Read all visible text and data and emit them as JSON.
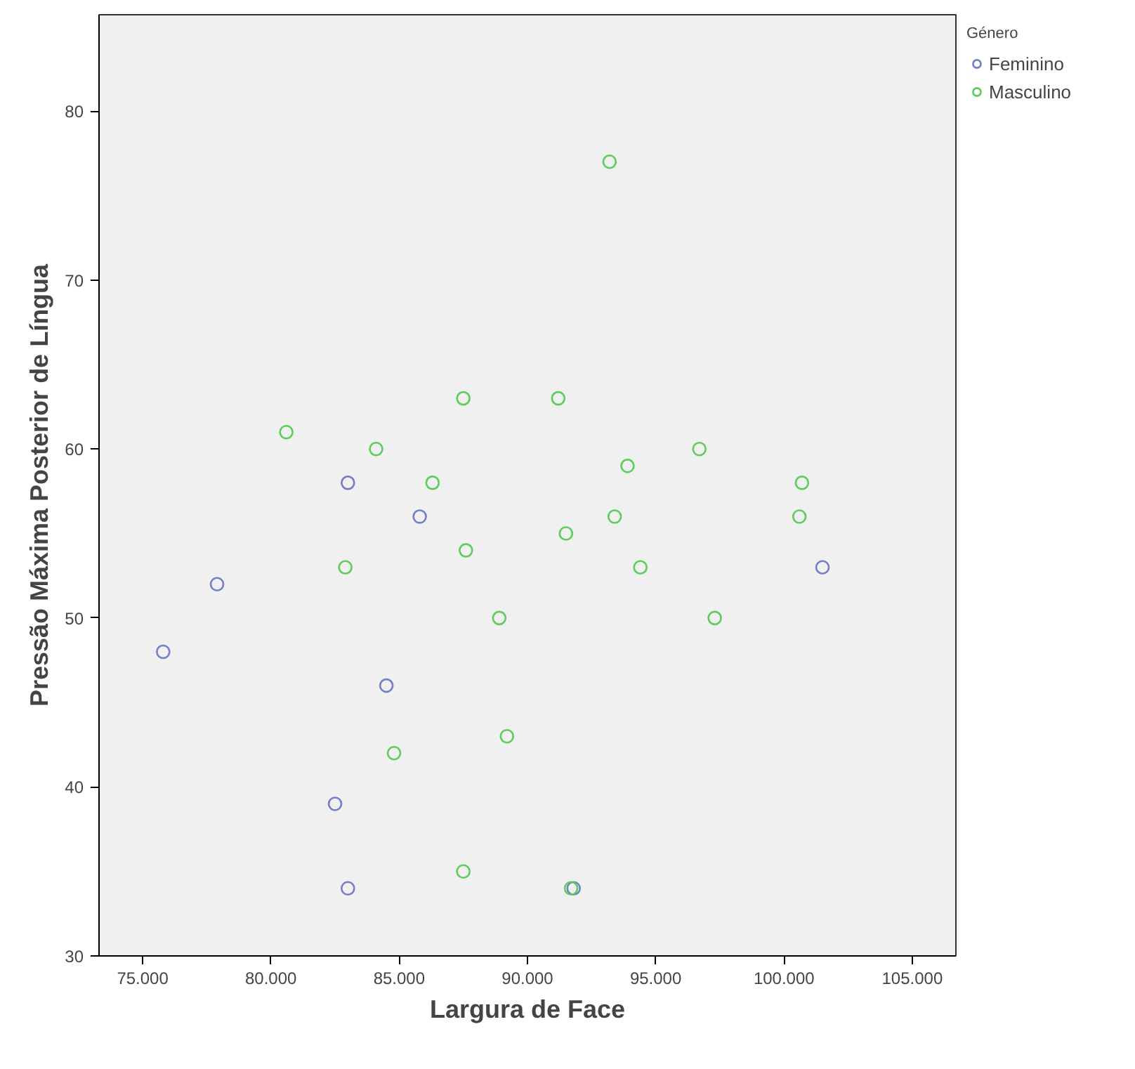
{
  "chart_data": {
    "type": "scatter",
    "xlabel": "Largura de Face",
    "ylabel": "Pressão Máxima Posterior de Língua",
    "legend_title": "Género",
    "legend": "top right",
    "grid": false,
    "marker": "circle",
    "xlim": [
      73.3,
      106.7
    ],
    "ylim": [
      30,
      85.7
    ],
    "xticks": [
      {
        "value": 75,
        "label": "75.000"
      },
      {
        "value": 80,
        "label": "80.000"
      },
      {
        "value": 85,
        "label": "85.000"
      },
      {
        "value": 90,
        "label": "90.000"
      },
      {
        "value": 95,
        "label": "95.000"
      },
      {
        "value": 100,
        "label": "100.000"
      },
      {
        "value": 105,
        "label": "105.000"
      }
    ],
    "yticks": [
      30,
      40,
      50,
      60,
      70,
      80
    ],
    "series": [
      {
        "name": "Feminino",
        "color": "#6f7fc8",
        "x": [
          83.0,
          85.8,
          77.9,
          75.8,
          84.5,
          82.5,
          83.0,
          91.8,
          101.5
        ],
        "values": [
          58,
          56,
          52,
          48,
          46,
          39,
          34,
          34,
          53
        ]
      },
      {
        "name": "Masculino",
        "color": "#5ccc5c",
        "x": [
          93.2,
          80.6,
          84.1,
          87.5,
          91.2,
          86.3,
          93.9,
          96.7,
          100.7,
          82.9,
          87.6,
          91.5,
          93.4,
          94.4,
          100.6,
          88.9,
          97.3,
          84.8,
          89.2,
          87.5,
          91.7
        ],
        "values": [
          77,
          61,
          60,
          63,
          63,
          58,
          59,
          60,
          58,
          53,
          54,
          55,
          56,
          53,
          56,
          50,
          50,
          42,
          43,
          35,
          34
        ]
      }
    ]
  }
}
